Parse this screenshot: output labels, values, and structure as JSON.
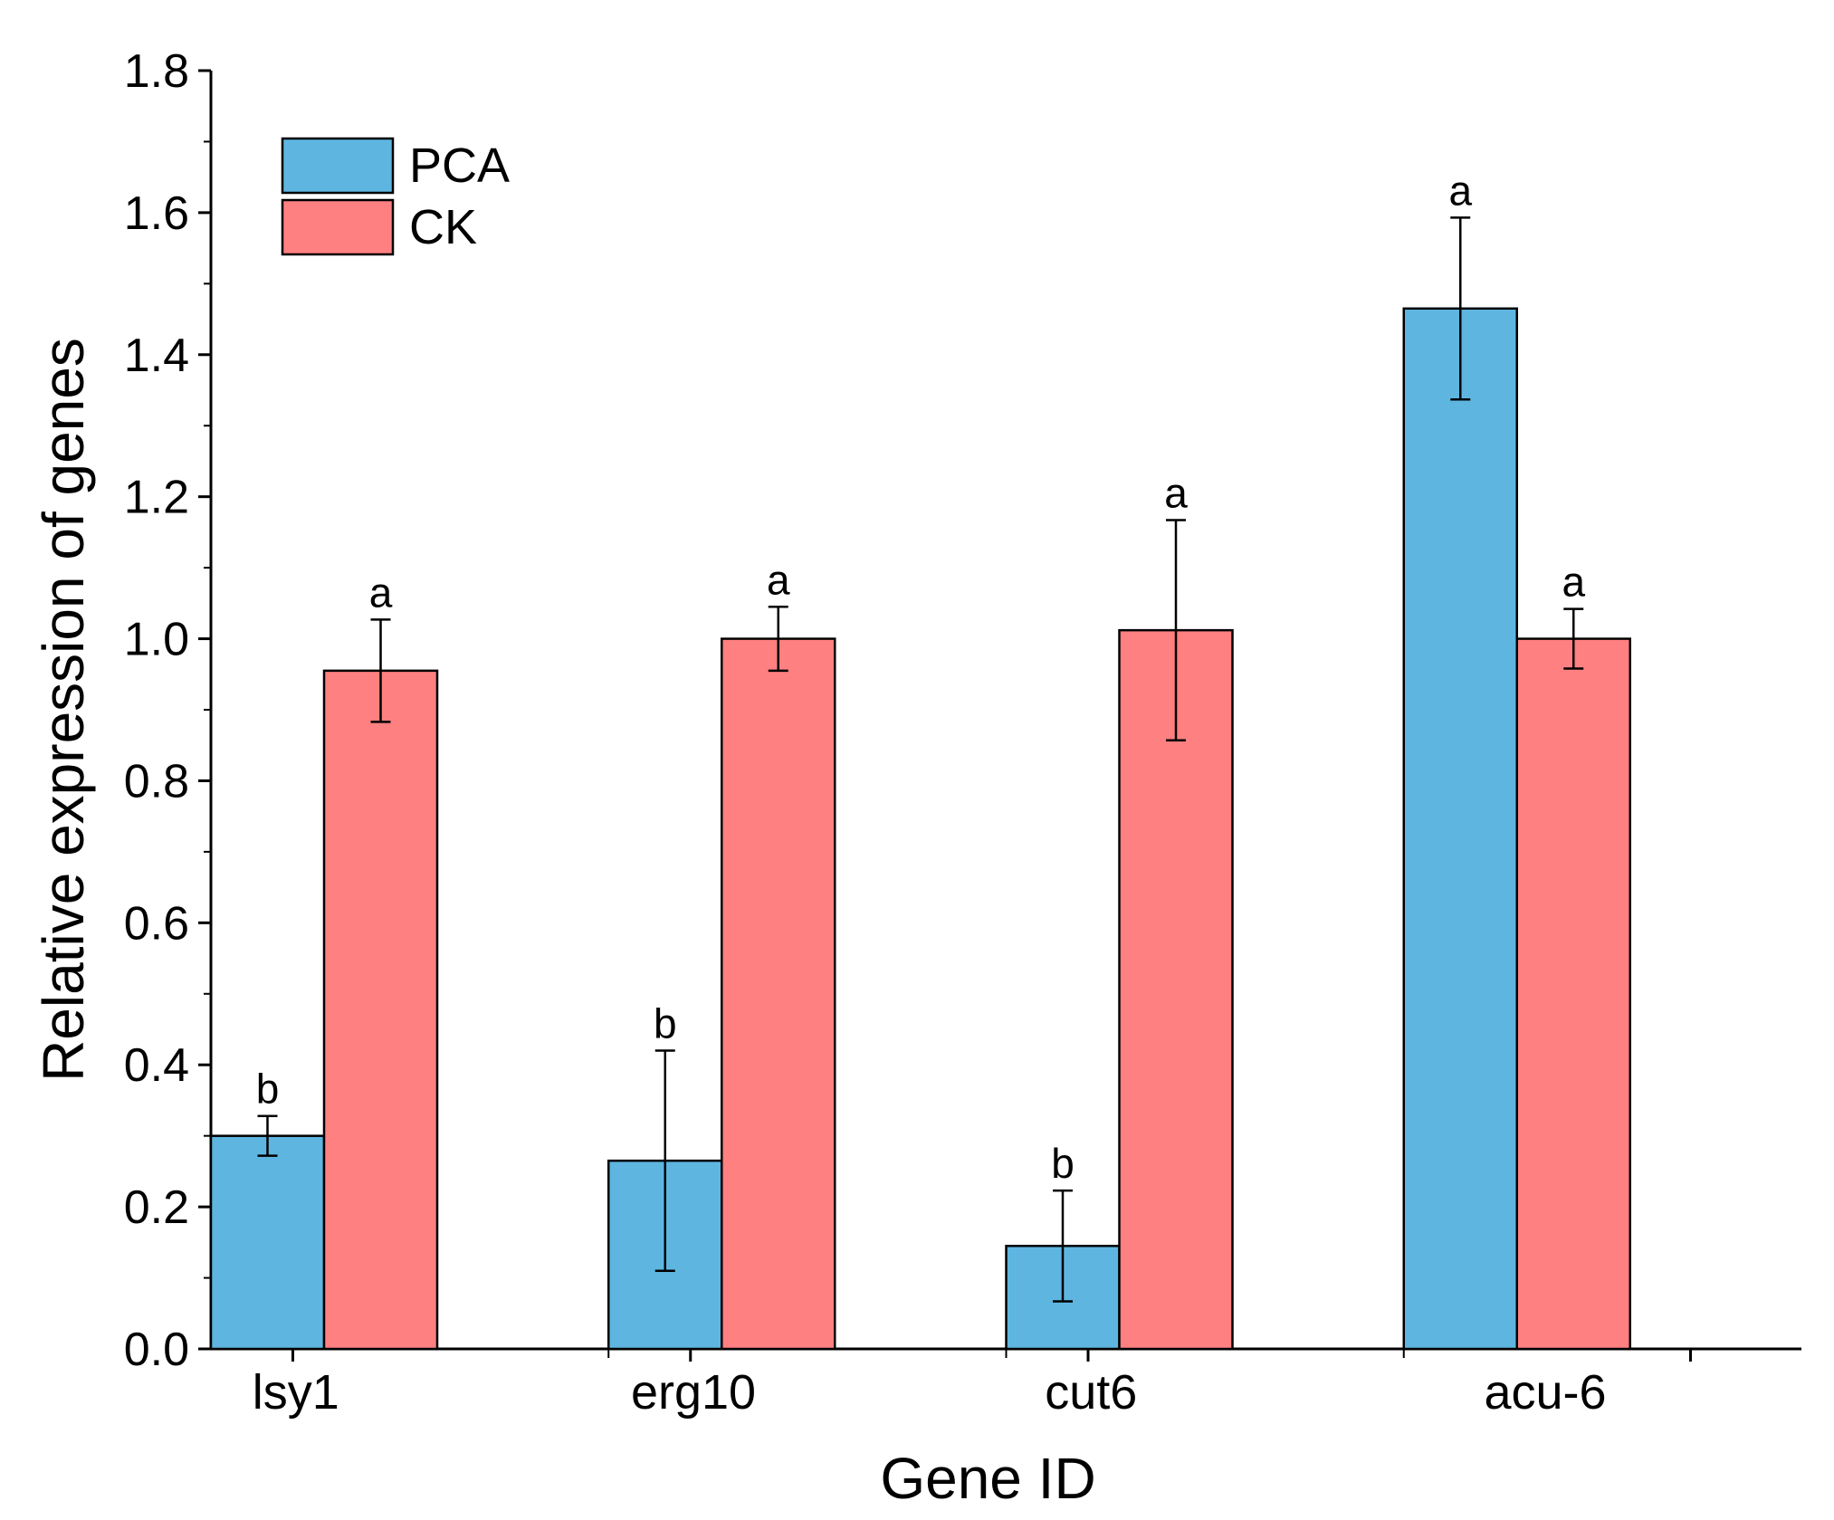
{
  "chart_data": {
    "type": "bar",
    "title": "",
    "xlabel": "Gene ID",
    "ylabel": "Relative expression of genes",
    "ylim": [
      0,
      1.8
    ],
    "yticks": [
      0.0,
      0.2,
      0.4,
      0.6,
      0.8,
      1.0,
      1.2,
      1.4,
      1.6,
      1.8
    ],
    "ytick_labels": [
      "0.0",
      "0.2",
      "0.4",
      "0.6",
      "0.8",
      "1.0",
      "1.2",
      "1.4",
      "1.6",
      "1.8"
    ],
    "categories": [
      "lsy1",
      "erg10",
      "cut6",
      "acu-6"
    ],
    "legend_position": "top-left",
    "grid": false,
    "series": [
      {
        "name": "PCA",
        "color": "#5EB6E0",
        "values": [
          0.3,
          0.265,
          0.145,
          1.465
        ],
        "errors": [
          0.028,
          0.155,
          0.078,
          0.128
        ],
        "significance": [
          "b",
          "b",
          "b",
          "a"
        ]
      },
      {
        "name": "CK",
        "color": "#FF8080",
        "values": [
          0.955,
          1.0,
          1.012,
          1.0
        ],
        "errors": [
          0.072,
          0.045,
          0.155,
          0.042
        ],
        "significance": [
          "a",
          "a",
          "a",
          "a"
        ]
      }
    ]
  }
}
